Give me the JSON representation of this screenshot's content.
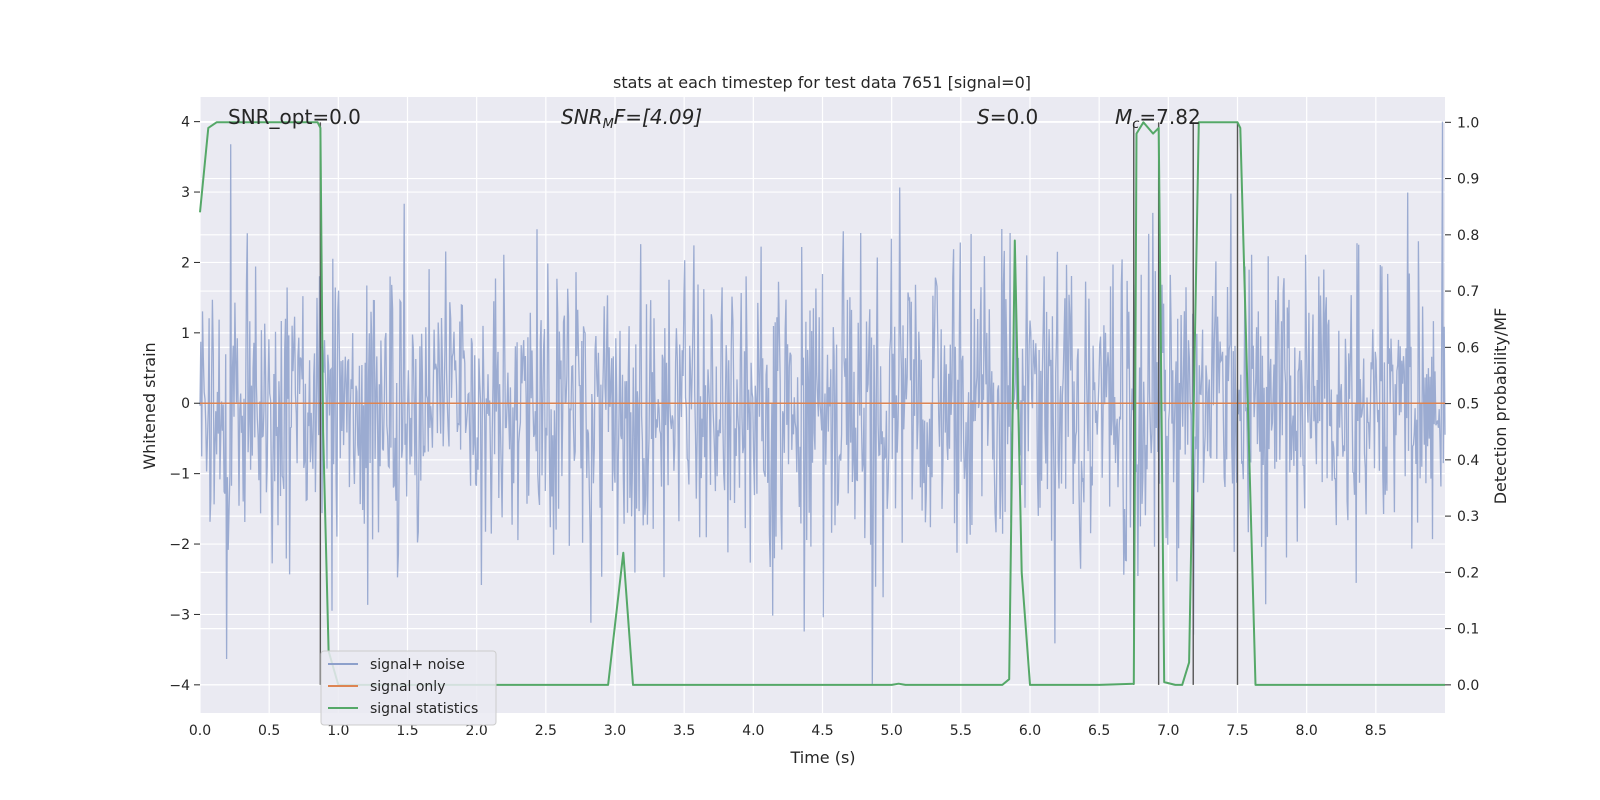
{
  "chart_data": {
    "type": "line",
    "title": "stats at each timestep for test data 7651 [signal=0]",
    "xlabel": "Time (s)",
    "ylabel_left": "Whitened strain",
    "ylabel_right": "Detection probability/MF",
    "xlim": [
      0.0,
      9.0
    ],
    "ylim_left": [
      -4.4,
      4.35
    ],
    "ylim_right": [
      -0.05,
      1.045
    ],
    "x_ticks": [
      "0.0",
      "0.5",
      "1.0",
      "1.5",
      "2.0",
      "2.5",
      "3.0",
      "3.5",
      "4.0",
      "4.5",
      "5.0",
      "5.5",
      "6.0",
      "6.5",
      "7.0",
      "7.5",
      "8.0",
      "8.5"
    ],
    "y_ticks_left": [
      "−4",
      "−3",
      "−2",
      "−1",
      "0",
      "1",
      "2",
      "3",
      "4"
    ],
    "y_ticks_right": [
      "0.0",
      "0.1",
      "0.2",
      "0.3",
      "0.4",
      "0.5",
      "0.6",
      "0.7",
      "0.8",
      "0.9",
      "1.0"
    ],
    "grid": true,
    "legend_position": "lower-left",
    "annotations": {
      "snr_opt": "SNR_opt=0.0",
      "snr_mf_main": "SNR",
      "snr_mf_sub": "M",
      "snr_mf_rest": "F=[4.09]",
      "s_main": "S",
      "s_rest": "=0.0",
      "mc_main": "M",
      "mc_sub": "c",
      "mc_rest": "=7.82"
    },
    "series": [
      {
        "name": "signal+ noise",
        "color": "#8da0cb",
        "description_values": "dense noise spanning roughly -4 to 4 whitened strain over 0–9 s"
      },
      {
        "name": "signal only",
        "color": "#dd8452",
        "x": [
          0.0,
          9.0
        ],
        "y": [
          0.0,
          0.0
        ]
      },
      {
        "name": "signal statistics",
        "color": "#55a868",
        "x": [
          0.0,
          0.06,
          0.12,
          0.4,
          0.85,
          0.87,
          0.89,
          0.93,
          1.0,
          1.5,
          1.95,
          2.0,
          2.9,
          2.95,
          3.06,
          3.13,
          3.2,
          5.0,
          5.05,
          5.1,
          5.8,
          5.85,
          5.89,
          5.94,
          6.0,
          6.5,
          6.75,
          6.77,
          6.82,
          6.89,
          6.93,
          6.97,
          7.05,
          7.1,
          7.15,
          7.22,
          7.3,
          7.5,
          7.52,
          7.63,
          8.0,
          8.5,
          9.0
        ],
        "y": [
          0.84,
          0.99,
          1.0,
          1.0,
          1.0,
          0.99,
          0.45,
          0.06,
          0.0,
          0.0,
          0.0,
          0.0,
          0.0,
          0.0,
          0.235,
          0.0,
          0.0,
          0.0,
          0.002,
          0.0,
          0.0,
          0.01,
          0.79,
          0.2,
          0.0,
          0.0,
          0.002,
          0.98,
          1.0,
          0.98,
          0.99,
          0.005,
          0.0,
          0.0,
          0.04,
          1.0,
          1.0,
          1.0,
          0.99,
          0.0,
          0.0,
          0.0,
          0.0
        ]
      }
    ],
    "vertical_markers": {
      "color": "#555555",
      "x": [
        0.87,
        6.75,
        6.93,
        7.18,
        7.5
      ]
    }
  }
}
